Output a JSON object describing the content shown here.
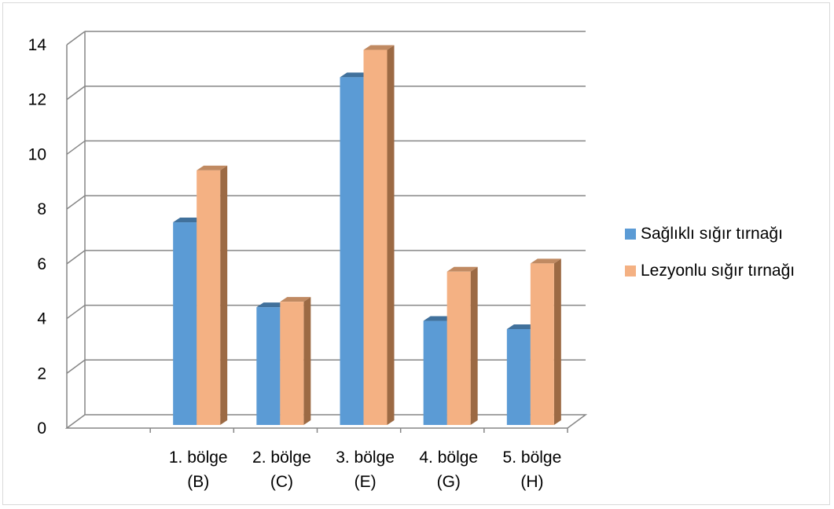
{
  "chart_data": {
    "type": "bar",
    "categories": [
      [
        "",
        ""
      ],
      [
        "1. bölge",
        "(B)"
      ],
      [
        "2. bölge",
        "(C)"
      ],
      [
        "3. bölge",
        "(E)"
      ],
      [
        "4. bölge",
        "(G)"
      ],
      [
        "5. bölge",
        "(H)"
      ]
    ],
    "series": [
      {
        "name": "Sağlıklı sığır tırnağı",
        "values": [
          null,
          7.4,
          4.3,
          12.7,
          3.8,
          3.5
        ],
        "color": "#5b9bd5",
        "side_color": "#2e5f8e",
        "top_color": "#41719c"
      },
      {
        "name": "Lezyonlu sığır tırnağı",
        "values": [
          null,
          9.3,
          4.5,
          13.7,
          5.6,
          5.9
        ],
        "color": "#f4b183",
        "side_color": "#9c6a44",
        "top_color": "#c08a62"
      }
    ],
    "ylim": [
      0,
      14
    ],
    "yticks": [
      "0",
      "2",
      "4",
      "6",
      "8",
      "10",
      "12",
      "14"
    ],
    "grid": true,
    "legend_position": "right",
    "title": "",
    "xlabel": "",
    "ylabel": ""
  }
}
